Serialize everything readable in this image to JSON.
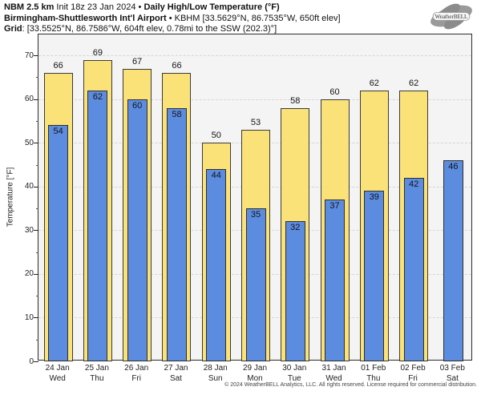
{
  "header": {
    "line1": {
      "bold1": "NBM 2.5 km",
      "regular1": " Init 18z 23 Jan 2024 ",
      "sep": "•",
      "bold2": " Daily High/Low Temperature (°F)"
    },
    "line2": {
      "bold": "Birmingham-Shuttlesworth Int'l Airport",
      "sep": " • ",
      "regular": "KBHM [33.5629°N, 86.7535°W, 650ft elev]"
    },
    "line3": {
      "bold": "Grid",
      "regular": ": [33.5525°N, 86.7586°W, 604ft elev, 0.78mi to the SSW (202.3)°]"
    }
  },
  "logo": {
    "text": "WeatherBELL"
  },
  "chart_data": {
    "type": "bar",
    "title": "NBM 2.5 km Daily High/Low Temperature (°F) — Birmingham-Shuttlesworth Int'l Airport (KBHM)",
    "xlabel": "",
    "ylabel": "Temperature [°F]",
    "ylim": [
      0,
      74.8
    ],
    "yticks": [
      0,
      10,
      20,
      30,
      40,
      50,
      60,
      70
    ],
    "ytick_minor_step": 5,
    "grid": true,
    "legend_position": "none",
    "categories": [
      {
        "date": "24 Jan",
        "day": "Wed"
      },
      {
        "date": "25 Jan",
        "day": "Thu"
      },
      {
        "date": "26 Jan",
        "day": "Fri"
      },
      {
        "date": "27 Jan",
        "day": "Sat"
      },
      {
        "date": "28 Jan",
        "day": "Sun"
      },
      {
        "date": "29 Jan",
        "day": "Mon"
      },
      {
        "date": "30 Jan",
        "day": "Tue"
      },
      {
        "date": "31 Jan",
        "day": "Wed"
      },
      {
        "date": "01 Feb",
        "day": "Thu"
      },
      {
        "date": "02 Feb",
        "day": "Fri"
      },
      {
        "date": "03 Feb",
        "day": "Sat"
      }
    ],
    "series": [
      {
        "name": "Daily High",
        "color": "#FBE278",
        "border_color": "#3a3a3a",
        "values": [
          66,
          69,
          67,
          66,
          50,
          53,
          58,
          60,
          62,
          62,
          null
        ]
      },
      {
        "name": "Daily Low",
        "color": "#5C8CDF",
        "border_color": "#2f2f2f",
        "values": [
          54,
          62,
          60,
          58,
          44,
          35,
          32,
          37,
          39,
          42,
          46
        ]
      }
    ]
  },
  "footer": {
    "copyright": "© 2024 WeatherBELL Analytics, LLC. All rights reserved. License required for commercial distribution."
  }
}
